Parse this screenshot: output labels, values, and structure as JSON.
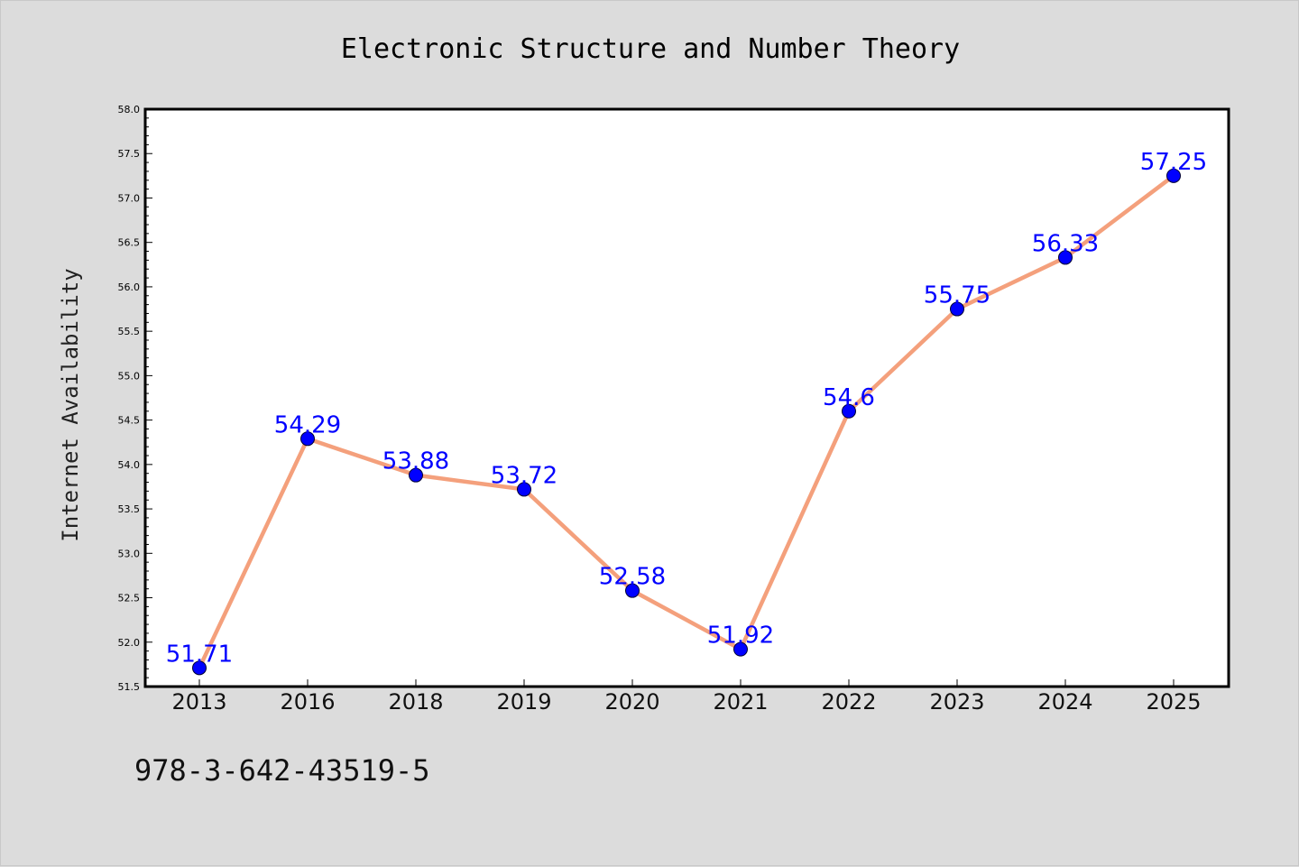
{
  "chart_data": {
    "type": "line",
    "title": "Electronic Structure and Number Theory",
    "xlabel": "",
    "ylabel": "Internet Availability",
    "categories": [
      "2013",
      "2016",
      "2018",
      "2019",
      "2020",
      "2021",
      "2022",
      "2023",
      "2024",
      "2025"
    ],
    "series": [
      {
        "values": [
          51.71,
          54.29,
          53.88,
          53.72,
          52.58,
          51.92,
          54.6,
          55.75,
          56.33,
          57.25
        ],
        "labels": [
          "51.71",
          "54.29",
          "53.88",
          "53.72",
          "52.58",
          "51.92",
          "54.6",
          "55.75",
          "56.33",
          "57.25"
        ]
      }
    ],
    "ylim": [
      51.5,
      58.0
    ],
    "yticks": [
      "51.5",
      "52.0",
      "52.5",
      "53.0",
      "53.5",
      "54.0",
      "54.5",
      "55.0",
      "55.5",
      "56.0",
      "56.5",
      "57.0",
      "57.5",
      "58.0"
    ],
    "grid": false,
    "line_color": "#f4a07c",
    "marker_color": "#0000ff",
    "label_color": "#0000ff",
    "background_color": "#dcdcdc",
    "plot_background_color": "#ffffff"
  },
  "footnote": "978-3-642-43519-5"
}
